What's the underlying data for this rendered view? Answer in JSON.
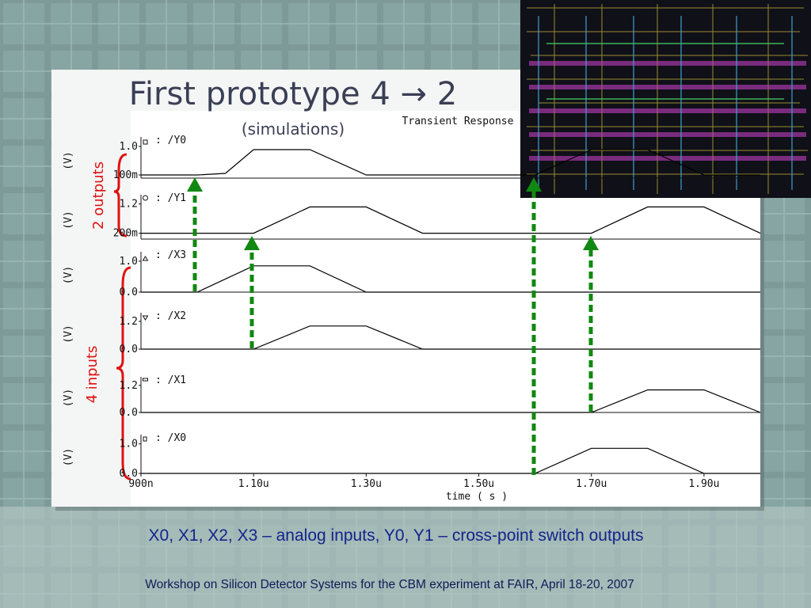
{
  "title": "First prototype 4 → 2",
  "subtitle": "(simulations)",
  "annotations": [
    "2 outputs",
    "4 inputs"
  ],
  "caption": "X0, X1, X2, X3 – analog inputs, Y0, Y1 – cross-point switch outputs",
  "footer": "Workshop on Silicon Detector Systems for the CBM experiment at FAIR, April 18-20, 2007",
  "chart_data": [
    {
      "type": "line",
      "title": "Transient Response",
      "ylabel": "(V)",
      "x": [
        9e-07,
        1e-06,
        1.05e-06,
        1.1e-06,
        1.2e-06,
        1.3e-06,
        1.6e-06,
        1.7e-06,
        1.8e-06,
        1.9e-06,
        2e-06
      ],
      "series": [
        {
          "name": "/Y0",
          "color": "#000000",
          "values": [
            0.1,
            0.1,
            0.15,
            0.9,
            0.9,
            0.1,
            0.1,
            0.9,
            0.9,
            0.1,
            0.1
          ]
        }
      ],
      "xlim": [
        9e-07,
        2e-06
      ],
      "ylim": [
        0,
        1.1
      ],
      "yticks": [
        {
          "value": 0.1,
          "label": "100m"
        },
        {
          "value": 1,
          "label": "1.0"
        }
      ]
    },
    {
      "type": "line",
      "ylabel": "(V)",
      "x": [
        9e-07,
        1.1e-06,
        1.2e-06,
        1.3e-06,
        1.4e-06,
        1.7e-06,
        1.8e-06,
        1.9e-06,
        2e-06
      ],
      "series": [
        {
          "name": "/Y1",
          "color": "#000000",
          "values": [
            0.2,
            0.2,
            1.1,
            1.1,
            0.2,
            0.2,
            1.1,
            1.1,
            0.2
          ]
        }
      ],
      "xlim": [
        9e-07,
        2e-06
      ],
      "ylim": [
        0,
        1.3
      ],
      "yticks": [
        {
          "value": 0.2,
          "label": "200m"
        },
        {
          "value": 1.2,
          "label": "1.2"
        }
      ]
    },
    {
      "type": "line",
      "ylabel": "(V)",
      "x": [
        9e-07,
        1e-06,
        1.1e-06,
        1.2e-06,
        1.3e-06,
        2e-06
      ],
      "series": [
        {
          "name": "/X3",
          "color": "#000000",
          "values": [
            0,
            0,
            0.85,
            0.85,
            0,
            0
          ]
        }
      ],
      "xlim": [
        9e-07,
        2e-06
      ],
      "ylim": [
        0,
        1.1
      ],
      "yticks": [
        {
          "value": 0,
          "label": "0.0"
        },
        {
          "value": 1,
          "label": "1.0"
        }
      ]
    },
    {
      "type": "line",
      "ylabel": "(V)",
      "x": [
        9e-07,
        1.1e-06,
        1.2e-06,
        1.3e-06,
        1.4e-06,
        2e-06
      ],
      "series": [
        {
          "name": "/X2",
          "color": "#000000",
          "values": [
            0,
            0,
            1,
            1,
            0,
            0
          ]
        }
      ],
      "xlim": [
        9e-07,
        2e-06
      ],
      "ylim": [
        0,
        1.3
      ],
      "yticks": [
        {
          "value": 0,
          "label": "0.0"
        },
        {
          "value": 1.2,
          "label": "1.2"
        }
      ]
    },
    {
      "type": "line",
      "ylabel": "(V)",
      "x": [
        9e-07,
        1.7e-06,
        1.8e-06,
        1.9e-06,
        2e-06
      ],
      "series": [
        {
          "name": "/X1",
          "color": "#000000",
          "values": [
            0,
            0,
            1,
            1,
            0
          ]
        }
      ],
      "xlim": [
        9e-07,
        2e-06
      ],
      "ylim": [
        0,
        1.3
      ],
      "yticks": [
        {
          "value": 0,
          "label": "0.0"
        },
        {
          "value": 1.2,
          "label": "1.2"
        }
      ]
    },
    {
      "type": "line",
      "ylabel": "(V)",
      "xlabel": "time ( s )",
      "x": [
        9e-07,
        1.6e-06,
        1.7e-06,
        1.8e-06,
        1.9e-06,
        2e-06
      ],
      "series": [
        {
          "name": "/X0",
          "color": "#000000",
          "values": [
            0,
            0,
            0.85,
            0.85,
            0,
            0
          ]
        }
      ],
      "xlim": [
        9e-07,
        2e-06
      ],
      "ylim": [
        0,
        1.1
      ],
      "yticks": [
        {
          "value": 0,
          "label": "0.0"
        },
        {
          "value": 1,
          "label": "1.0"
        }
      ],
      "xticks": [
        {
          "value": 9e-07,
          "label": "900n"
        },
        {
          "value": 1.1e-06,
          "label": "1.10u"
        },
        {
          "value": 1.3e-06,
          "label": "1.30u"
        },
        {
          "value": 1.5e-06,
          "label": "1.50u"
        },
        {
          "value": 1.7e-06,
          "label": "1.70u"
        },
        {
          "value": 1.9e-06,
          "label": "1.90u"
        }
      ]
    }
  ]
}
